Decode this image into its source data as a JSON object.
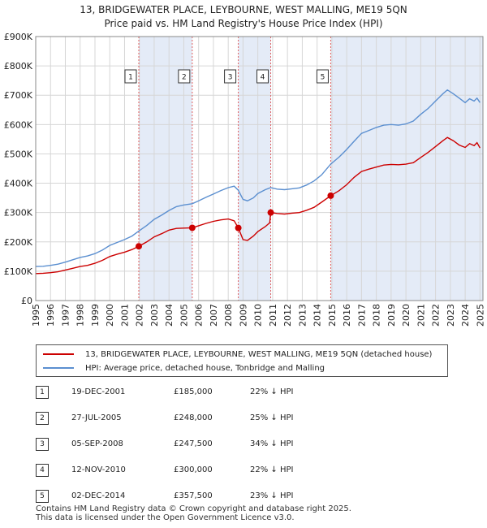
{
  "title_line1": "13, BRIDGEWATER PLACE, LEYBOURNE, WEST MALLING, ME19 5QN",
  "title_line2": "Price paid vs. HM Land Registry's House Price Index (HPI)",
  "colors": {
    "property": "#cc0000",
    "hpi": "#5b8fd0",
    "band": "#e4ebf7",
    "marker_line": "#e06060"
  },
  "legend": {
    "property_label": "13, BRIDGEWATER PLACE, LEYBOURNE, WEST MALLING, ME19 5QN (detached house)",
    "hpi_label": "HPI: Average price, detached house, Tonbridge and Malling"
  },
  "transactions": [
    {
      "num": "1",
      "date": "19-DEC-2001",
      "price": "£185,000",
      "hpi_diff": "22% ↓ HPI"
    },
    {
      "num": "2",
      "date": "27-JUL-2005",
      "price": "£248,000",
      "hpi_diff": "25% ↓ HPI"
    },
    {
      "num": "3",
      "date": "05-SEP-2008",
      "price": "£247,500",
      "hpi_diff": "34% ↓ HPI"
    },
    {
      "num": "4",
      "date": "12-NOV-2010",
      "price": "£300,000",
      "hpi_diff": "22% ↓ HPI"
    },
    {
      "num": "5",
      "date": "02-DEC-2014",
      "price": "£357,500",
      "hpi_diff": "23% ↓ HPI"
    }
  ],
  "footer_line1": "Contains HM Land Registry data © Crown copyright and database right 2025.",
  "footer_line2": "This data is licensed under the Open Government Licence v3.0.",
  "chart_data": {
    "type": "line",
    "xlim": [
      1995,
      2025.2
    ],
    "ylim": [
      0,
      900000
    ],
    "x_ticks": [
      1995,
      1996,
      1997,
      1998,
      1999,
      2000,
      2001,
      2002,
      2003,
      2004,
      2005,
      2006,
      2007,
      2008,
      2009,
      2010,
      2011,
      2012,
      2013,
      2014,
      2015,
      2016,
      2017,
      2018,
      2019,
      2020,
      2021,
      2022,
      2023,
      2024,
      2025
    ],
    "y_ticks": [
      {
        "value": 0,
        "label": "£0"
      },
      {
        "value": 100000,
        "label": "£100K"
      },
      {
        "value": 200000,
        "label": "£200K"
      },
      {
        "value": 300000,
        "label": "£300K"
      },
      {
        "value": 400000,
        "label": "£400K"
      },
      {
        "value": 500000,
        "label": "£500K"
      },
      {
        "value": 600000,
        "label": "£600K"
      },
      {
        "value": 700000,
        "label": "£700K"
      },
      {
        "value": 800000,
        "label": "£800K"
      },
      {
        "value": 900000,
        "label": "£900K"
      }
    ],
    "grid": true,
    "shaded_ranges": [
      [
        2001.96,
        2005.57
      ],
      [
        2008.68,
        2010.87
      ],
      [
        2014.92,
        2025.2
      ]
    ],
    "sales": [
      {
        "label": "1",
        "x": 2001.96,
        "y": 185000
      },
      {
        "label": "2",
        "x": 2005.57,
        "y": 248000
      },
      {
        "label": "3",
        "x": 2008.68,
        "y": 247500
      },
      {
        "label": "4",
        "x": 2010.87,
        "y": 300000
      },
      {
        "label": "5",
        "x": 2014.92,
        "y": 357500
      }
    ],
    "series": [
      {
        "name": "13, BRIDGEWATER PLACE, LEYBOURNE, WEST MALLING, ME19 5QN (detached house)",
        "color": "#cc0000",
        "points": [
          [
            1995.0,
            92000
          ],
          [
            1995.5,
            93000
          ],
          [
            1996.0,
            95000
          ],
          [
            1996.5,
            98000
          ],
          [
            1997.0,
            104000
          ],
          [
            1997.5,
            110000
          ],
          [
            1998.0,
            116000
          ],
          [
            1998.5,
            120000
          ],
          [
            1999.0,
            127000
          ],
          [
            1999.5,
            137000
          ],
          [
            2000.0,
            150000
          ],
          [
            2000.5,
            158000
          ],
          [
            2001.0,
            165000
          ],
          [
            2001.5,
            174000
          ],
          [
            2001.96,
            185000
          ],
          [
            2002.5,
            200000
          ],
          [
            2003.0,
            217000
          ],
          [
            2003.5,
            228000
          ],
          [
            2004.0,
            240000
          ],
          [
            2004.5,
            246000
          ],
          [
            2005.0,
            247000
          ],
          [
            2005.57,
            248000
          ],
          [
            2006.0,
            255000
          ],
          [
            2006.5,
            263000
          ],
          [
            2007.0,
            270000
          ],
          [
            2007.5,
            275000
          ],
          [
            2008.0,
            278000
          ],
          [
            2008.4,
            272000
          ],
          [
            2008.68,
            247500
          ],
          [
            2009.0,
            208000
          ],
          [
            2009.3,
            205000
          ],
          [
            2009.7,
            220000
          ],
          [
            2010.0,
            235000
          ],
          [
            2010.5,
            252000
          ],
          [
            2010.8,
            265000
          ],
          [
            2010.87,
            300000
          ],
          [
            2011.3,
            297000
          ],
          [
            2011.8,
            295000
          ],
          [
            2012.3,
            298000
          ],
          [
            2012.8,
            300000
          ],
          [
            2013.3,
            308000
          ],
          [
            2013.8,
            318000
          ],
          [
            2014.3,
            335000
          ],
          [
            2014.92,
            357500
          ],
          [
            2015.5,
            375000
          ],
          [
            2016.0,
            395000
          ],
          [
            2016.5,
            420000
          ],
          [
            2017.0,
            440000
          ],
          [
            2017.5,
            448000
          ],
          [
            2018.0,
            455000
          ],
          [
            2018.5,
            462000
          ],
          [
            2019.0,
            464000
          ],
          [
            2019.5,
            463000
          ],
          [
            2020.0,
            465000
          ],
          [
            2020.5,
            470000
          ],
          [
            2021.0,
            488000
          ],
          [
            2021.5,
            505000
          ],
          [
            2022.0,
            525000
          ],
          [
            2022.5,
            545000
          ],
          [
            2022.8,
            556000
          ],
          [
            2023.2,
            545000
          ],
          [
            2023.6,
            530000
          ],
          [
            2024.0,
            522000
          ],
          [
            2024.3,
            535000
          ],
          [
            2024.6,
            528000
          ],
          [
            2024.8,
            538000
          ],
          [
            2025.0,
            520000
          ]
        ]
      },
      {
        "name": "HPI: Average price, detached house, Tonbridge and Malling",
        "color": "#5b8fd0",
        "points": [
          [
            1995.0,
            116000
          ],
          [
            1995.5,
            117000
          ],
          [
            1996.0,
            120000
          ],
          [
            1996.5,
            124000
          ],
          [
            1997.0,
            131000
          ],
          [
            1997.5,
            139000
          ],
          [
            1998.0,
            147000
          ],
          [
            1998.5,
            152000
          ],
          [
            1999.0,
            160000
          ],
          [
            1999.5,
            172000
          ],
          [
            2000.0,
            188000
          ],
          [
            2000.5,
            198000
          ],
          [
            2001.0,
            208000
          ],
          [
            2001.5,
            220000
          ],
          [
            2001.96,
            237000
          ],
          [
            2002.5,
            256000
          ],
          [
            2003.0,
            277000
          ],
          [
            2003.5,
            291000
          ],
          [
            2004.0,
            307000
          ],
          [
            2004.5,
            320000
          ],
          [
            2005.0,
            326000
          ],
          [
            2005.57,
            330000
          ],
          [
            2006.0,
            340000
          ],
          [
            2006.5,
            352000
          ],
          [
            2007.0,
            363000
          ],
          [
            2007.5,
            375000
          ],
          [
            2008.0,
            385000
          ],
          [
            2008.4,
            390000
          ],
          [
            2008.68,
            376000
          ],
          [
            2009.0,
            345000
          ],
          [
            2009.3,
            340000
          ],
          [
            2009.7,
            350000
          ],
          [
            2010.0,
            365000
          ],
          [
            2010.5,
            378000
          ],
          [
            2010.87,
            385000
          ],
          [
            2011.3,
            380000
          ],
          [
            2011.8,
            378000
          ],
          [
            2012.3,
            381000
          ],
          [
            2012.8,
            384000
          ],
          [
            2013.3,
            394000
          ],
          [
            2013.8,
            408000
          ],
          [
            2014.3,
            428000
          ],
          [
            2014.92,
            465000
          ],
          [
            2015.5,
            490000
          ],
          [
            2016.0,
            515000
          ],
          [
            2016.5,
            543000
          ],
          [
            2017.0,
            570000
          ],
          [
            2017.5,
            580000
          ],
          [
            2018.0,
            590000
          ],
          [
            2018.5,
            598000
          ],
          [
            2019.0,
            600000
          ],
          [
            2019.5,
            598000
          ],
          [
            2020.0,
            602000
          ],
          [
            2020.5,
            612000
          ],
          [
            2021.0,
            635000
          ],
          [
            2021.5,
            655000
          ],
          [
            2022.0,
            680000
          ],
          [
            2022.5,
            705000
          ],
          [
            2022.8,
            718000
          ],
          [
            2023.2,
            705000
          ],
          [
            2023.6,
            690000
          ],
          [
            2024.0,
            675000
          ],
          [
            2024.3,
            688000
          ],
          [
            2024.6,
            680000
          ],
          [
            2024.8,
            690000
          ],
          [
            2025.0,
            675000
          ]
        ]
      }
    ]
  }
}
